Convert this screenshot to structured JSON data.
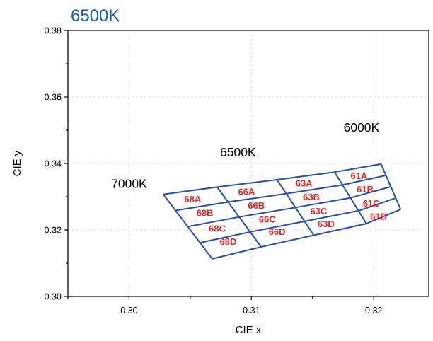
{
  "chart_data": {
    "type": "scatter",
    "title": "6500K",
    "xlabel": "CIE x",
    "ylabel": "CIE y",
    "xlim": [
      0.295,
      0.3245
    ],
    "ylim": [
      0.3,
      0.38
    ],
    "x_ticks": [
      0.3,
      0.31,
      0.32
    ],
    "x_tick_labels": [
      "0.30",
      "0.31",
      "0.32"
    ],
    "y_ticks": [
      0.3,
      0.32,
      0.34,
      0.36,
      0.38
    ],
    "y_tick_labels": [
      "0.30",
      "0.32",
      "0.34",
      "0.36",
      "0.38"
    ],
    "grid": true,
    "colors": {
      "title": "#1f5faa",
      "bin_lines": "#2a4ea0",
      "bin_labels": "#e0262a"
    },
    "bin_grid": {
      "columns": [
        {
          "top": [
            0.3028,
            0.3307
          ],
          "bottom": [
            0.3068,
            0.3113
          ]
        },
        {
          "top": [
            0.3072,
            0.3329
          ],
          "bottom": [
            0.3108,
            0.3149
          ]
        },
        {
          "top": [
            0.3121,
            0.3351
          ],
          "bottom": [
            0.3151,
            0.3184
          ]
        },
        {
          "top": [
            0.3168,
            0.3374
          ],
          "bottom": [
            0.3194,
            0.3219
          ]
        },
        {
          "top": [
            0.3206,
            0.3398
          ],
          "bottom": [
            0.3222,
            0.3262
          ]
        }
      ],
      "rows": 4
    },
    "bin_labels": [
      {
        "text": "68A",
        "x": 0.3052,
        "y": 0.3294
      },
      {
        "text": "68B",
        "x": 0.3062,
        "y": 0.3252
      },
      {
        "text": "68C",
        "x": 0.3072,
        "y": 0.3205
      },
      {
        "text": "68D",
        "x": 0.3081,
        "y": 0.3166
      },
      {
        "text": "66A",
        "x": 0.3096,
        "y": 0.3316
      },
      {
        "text": "66B",
        "x": 0.3104,
        "y": 0.3274
      },
      {
        "text": "66C",
        "x": 0.3113,
        "y": 0.3233
      },
      {
        "text": "66D",
        "x": 0.3121,
        "y": 0.3196
      },
      {
        "text": "63A",
        "x": 0.3143,
        "y": 0.3341
      },
      {
        "text": "63B",
        "x": 0.3149,
        "y": 0.33
      },
      {
        "text": "63C",
        "x": 0.3155,
        "y": 0.3257
      },
      {
        "text": "63D",
        "x": 0.3161,
        "y": 0.3219
      },
      {
        "text": "61A",
        "x": 0.3188,
        "y": 0.3364
      },
      {
        "text": "61B",
        "x": 0.3193,
        "y": 0.3323
      },
      {
        "text": "61C",
        "x": 0.3198,
        "y": 0.3281
      },
      {
        "text": "61D",
        "x": 0.3204,
        "y": 0.3241
      }
    ],
    "annotations": [
      {
        "text": "7000K",
        "x": 0.3,
        "y": 0.3339
      },
      {
        "text": "6500K",
        "x": 0.3089,
        "y": 0.3434
      },
      {
        "text": "6000K",
        "x": 0.319,
        "y": 0.3508
      }
    ]
  }
}
